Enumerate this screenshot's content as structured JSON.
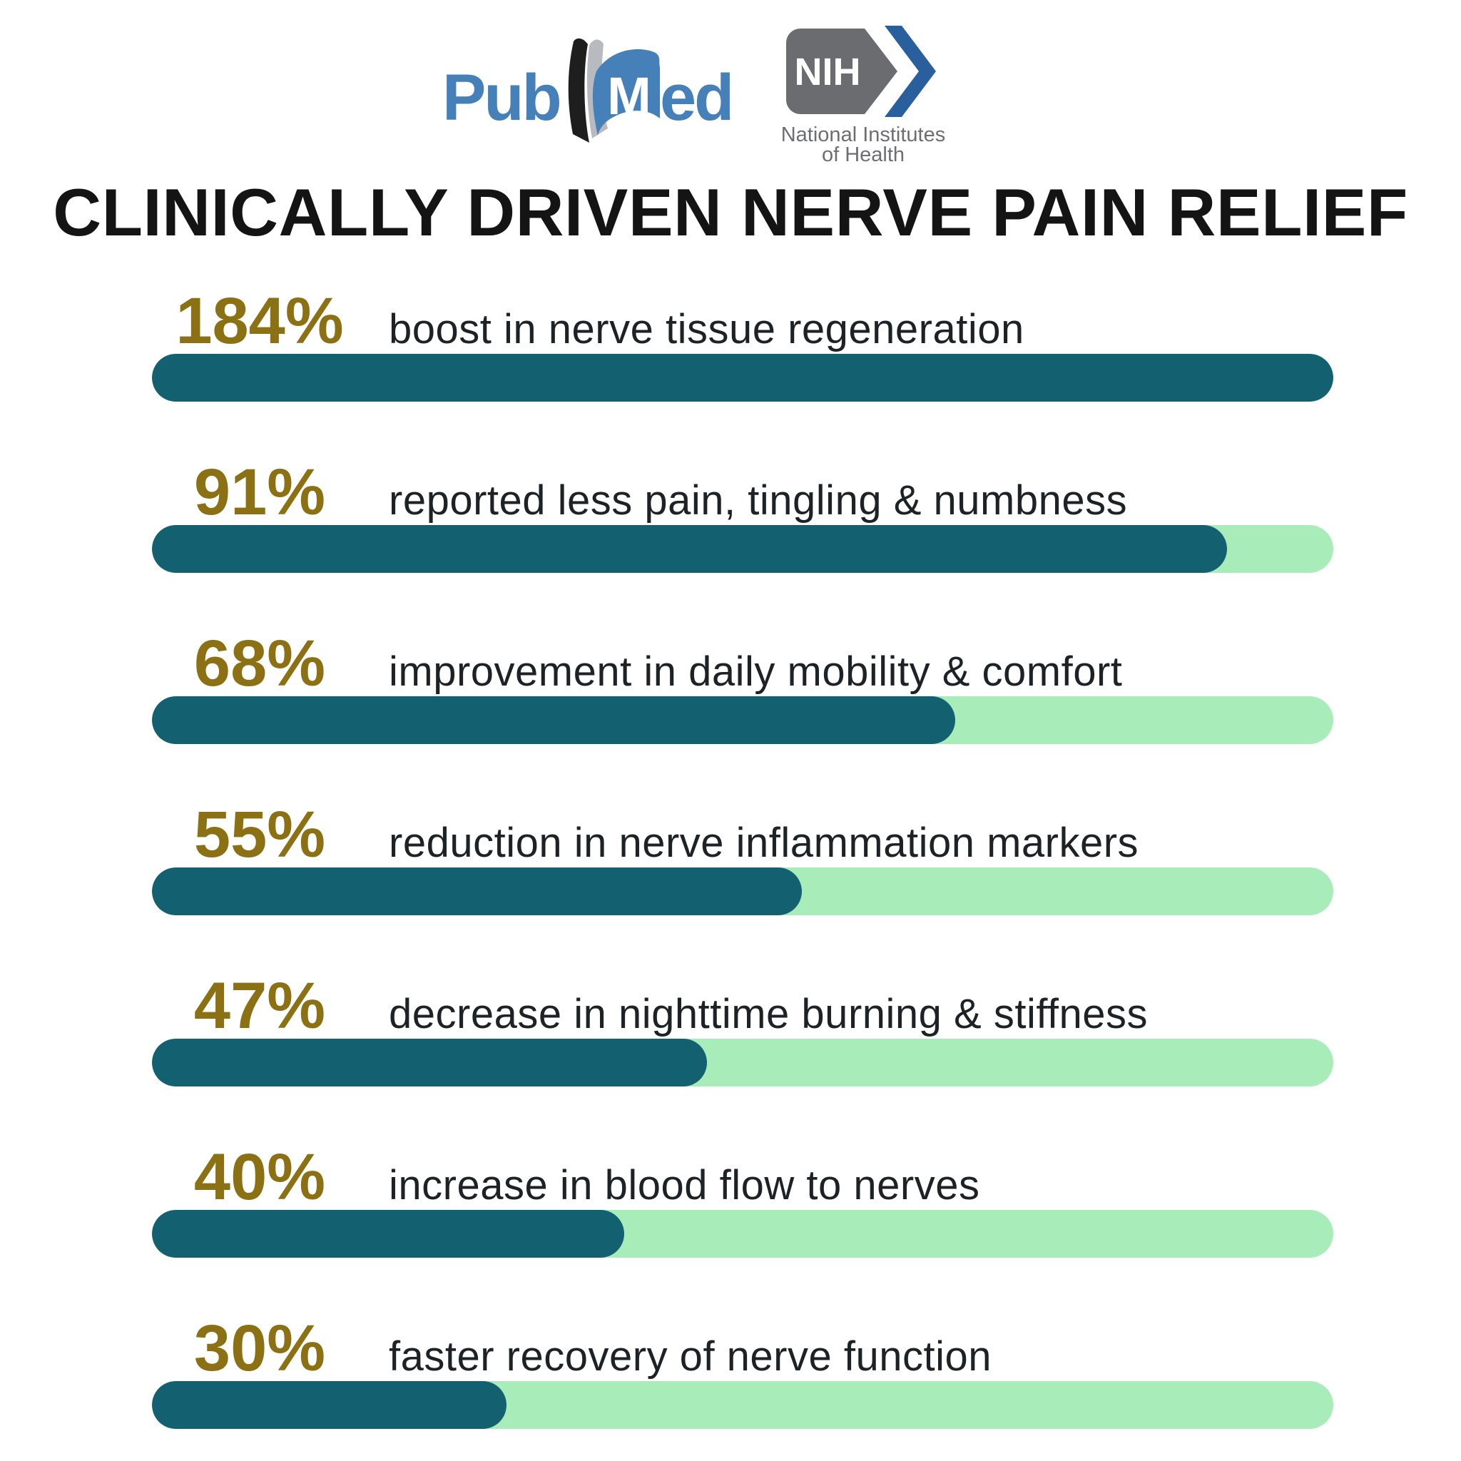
{
  "title": "CLINICALLY DRIVEN NERVE PAIN RELIEF",
  "header": {
    "pubmed": {
      "pub": "Pub",
      "m": "M",
      "ed": "ed"
    },
    "nih": {
      "acronym": "NIH",
      "line1": "National Institutes",
      "line2": "of Health"
    }
  },
  "chart_data": {
    "type": "bar",
    "orientation": "horizontal",
    "title": "CLINICALLY DRIVEN NERVE PAIN RELIEF",
    "unit": "percent",
    "grid": false,
    "legend": "none",
    "axis_labels": "none",
    "bar_scale_max": 100,
    "categories": [
      "boost in nerve tissue regeneration",
      "reported less pain, tingling & numbness",
      "improvement in daily mobility & comfort",
      "reduction in nerve inflammation markers",
      "decrease in nighttime burning & stiffness",
      "increase in blood flow to nerves",
      "faster recovery of nerve function"
    ],
    "values": [
      184,
      91,
      68,
      55,
      47,
      40,
      30
    ],
    "pct_labels": [
      "184%",
      "91%",
      "68%",
      "55%",
      "47%",
      "40%",
      "30%"
    ],
    "bar_fill_percent": [
      100,
      91,
      68,
      55,
      47,
      40,
      30
    ]
  },
  "colors": {
    "bar_fill_teal": "#136170",
    "bar_track_green": "#A8ECB9",
    "percent_gold": "#8B7014",
    "description_text": "#1C2226",
    "title_text": "#141414",
    "pubmed_blue": "#4580B8",
    "nih_gray": "#6B6C6F",
    "nih_blue": "#2A5F9E",
    "book_black": "#1E1E1E",
    "book_gray": "#B7BABE"
  }
}
